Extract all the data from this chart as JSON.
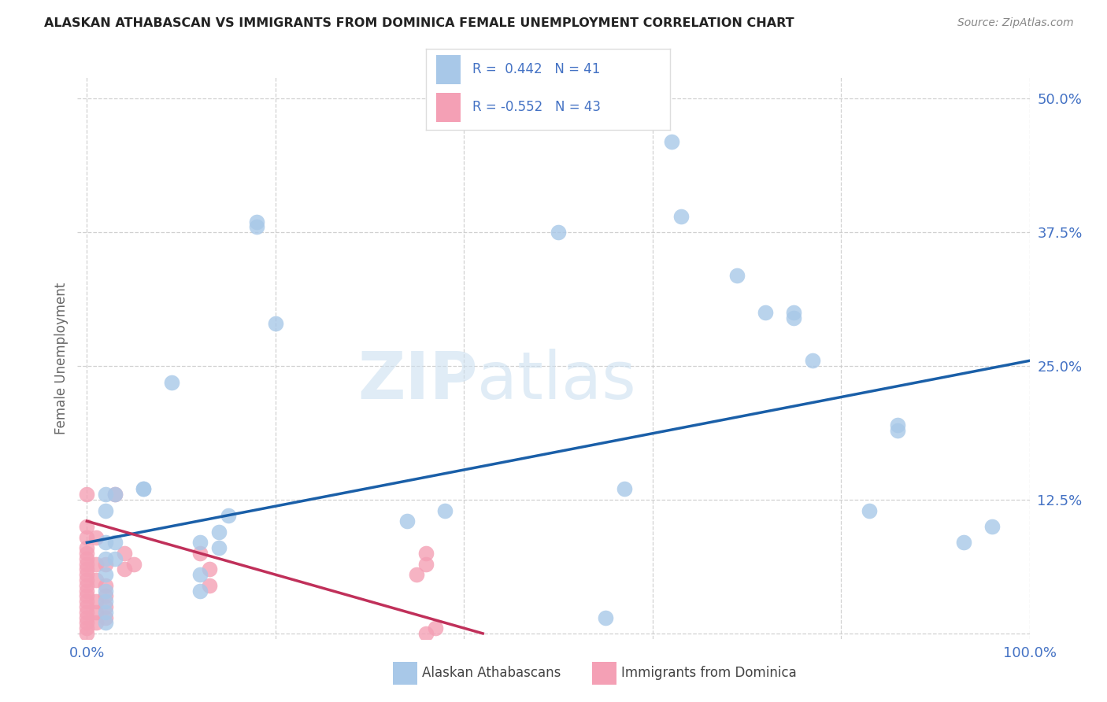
{
  "title": "ALASKAN ATHABASCAN VS IMMIGRANTS FROM DOMINICA FEMALE UNEMPLOYMENT CORRELATION CHART",
  "source": "Source: ZipAtlas.com",
  "ylabel_label": "Female Unemployment",
  "legend_blue_label": "Alaskan Athabascans",
  "legend_pink_label": "Immigrants from Dominica",
  "blue_color": "#a8c8e8",
  "pink_color": "#f4a0b5",
  "trendline_blue": "#1a5fa8",
  "trendline_pink": "#c0305a",
  "blue_scatter": [
    [
      0.02,
      0.13
    ],
    [
      0.02,
      0.115
    ],
    [
      0.02,
      0.085
    ],
    [
      0.02,
      0.07
    ],
    [
      0.02,
      0.055
    ],
    [
      0.02,
      0.04
    ],
    [
      0.02,
      0.03
    ],
    [
      0.02,
      0.02
    ],
    [
      0.02,
      0.01
    ],
    [
      0.03,
      0.13
    ],
    [
      0.03,
      0.085
    ],
    [
      0.03,
      0.07
    ],
    [
      0.06,
      0.135
    ],
    [
      0.06,
      0.135
    ],
    [
      0.09,
      0.235
    ],
    [
      0.12,
      0.085
    ],
    [
      0.12,
      0.055
    ],
    [
      0.12,
      0.04
    ],
    [
      0.14,
      0.095
    ],
    [
      0.14,
      0.08
    ],
    [
      0.15,
      0.11
    ],
    [
      0.18,
      0.38
    ],
    [
      0.18,
      0.385
    ],
    [
      0.2,
      0.29
    ],
    [
      0.34,
      0.105
    ],
    [
      0.38,
      0.115
    ],
    [
      0.5,
      0.375
    ],
    [
      0.55,
      0.015
    ],
    [
      0.57,
      0.135
    ],
    [
      0.62,
      0.46
    ],
    [
      0.63,
      0.39
    ],
    [
      0.69,
      0.335
    ],
    [
      0.72,
      0.3
    ],
    [
      0.75,
      0.3
    ],
    [
      0.75,
      0.295
    ],
    [
      0.77,
      0.255
    ],
    [
      0.83,
      0.115
    ],
    [
      0.86,
      0.19
    ],
    [
      0.86,
      0.195
    ],
    [
      0.93,
      0.085
    ],
    [
      0.96,
      0.1
    ]
  ],
  "pink_scatter": [
    [
      0.0,
      0.13
    ],
    [
      0.0,
      0.1
    ],
    [
      0.0,
      0.09
    ],
    [
      0.0,
      0.08
    ],
    [
      0.0,
      0.075
    ],
    [
      0.0,
      0.07
    ],
    [
      0.0,
      0.065
    ],
    [
      0.0,
      0.06
    ],
    [
      0.0,
      0.055
    ],
    [
      0.0,
      0.05
    ],
    [
      0.0,
      0.045
    ],
    [
      0.0,
      0.04
    ],
    [
      0.0,
      0.035
    ],
    [
      0.0,
      0.03
    ],
    [
      0.0,
      0.025
    ],
    [
      0.0,
      0.02
    ],
    [
      0.0,
      0.015
    ],
    [
      0.0,
      0.01
    ],
    [
      0.0,
      0.005
    ],
    [
      0.0,
      0.0
    ],
    [
      0.01,
      0.09
    ],
    [
      0.01,
      0.065
    ],
    [
      0.01,
      0.05
    ],
    [
      0.01,
      0.03
    ],
    [
      0.01,
      0.02
    ],
    [
      0.01,
      0.01
    ],
    [
      0.02,
      0.065
    ],
    [
      0.02,
      0.045
    ],
    [
      0.02,
      0.035
    ],
    [
      0.02,
      0.025
    ],
    [
      0.02,
      0.015
    ],
    [
      0.03,
      0.13
    ],
    [
      0.04,
      0.075
    ],
    [
      0.04,
      0.06
    ],
    [
      0.05,
      0.065
    ],
    [
      0.12,
      0.075
    ],
    [
      0.13,
      0.06
    ],
    [
      0.13,
      0.045
    ],
    [
      0.35,
      0.055
    ],
    [
      0.36,
      0.0
    ],
    [
      0.36,
      0.065
    ],
    [
      0.36,
      0.075
    ],
    [
      0.37,
      0.005
    ]
  ],
  "blue_trend_x": [
    0.0,
    1.0
  ],
  "blue_trend_y": [
    0.085,
    0.255
  ],
  "pink_trend_x": [
    0.0,
    0.42
  ],
  "pink_trend_y": [
    0.105,
    0.0
  ],
  "xlim": [
    -0.01,
    1.0
  ],
  "ylim": [
    -0.005,
    0.52
  ],
  "ytick_vals": [
    0.0,
    0.125,
    0.25,
    0.375,
    0.5
  ],
  "ytick_labels": [
    "",
    "12.5%",
    "25.0%",
    "37.5%",
    "50.0%"
  ],
  "xtick_labels": [
    "0.0%",
    "",
    "",
    "",
    "",
    "100.0%"
  ],
  "background_color": "#ffffff",
  "grid_color": "#cccccc",
  "tick_color": "#4472c4",
  "title_color": "#222222",
  "source_color": "#888888",
  "ylabel_color": "#666666"
}
